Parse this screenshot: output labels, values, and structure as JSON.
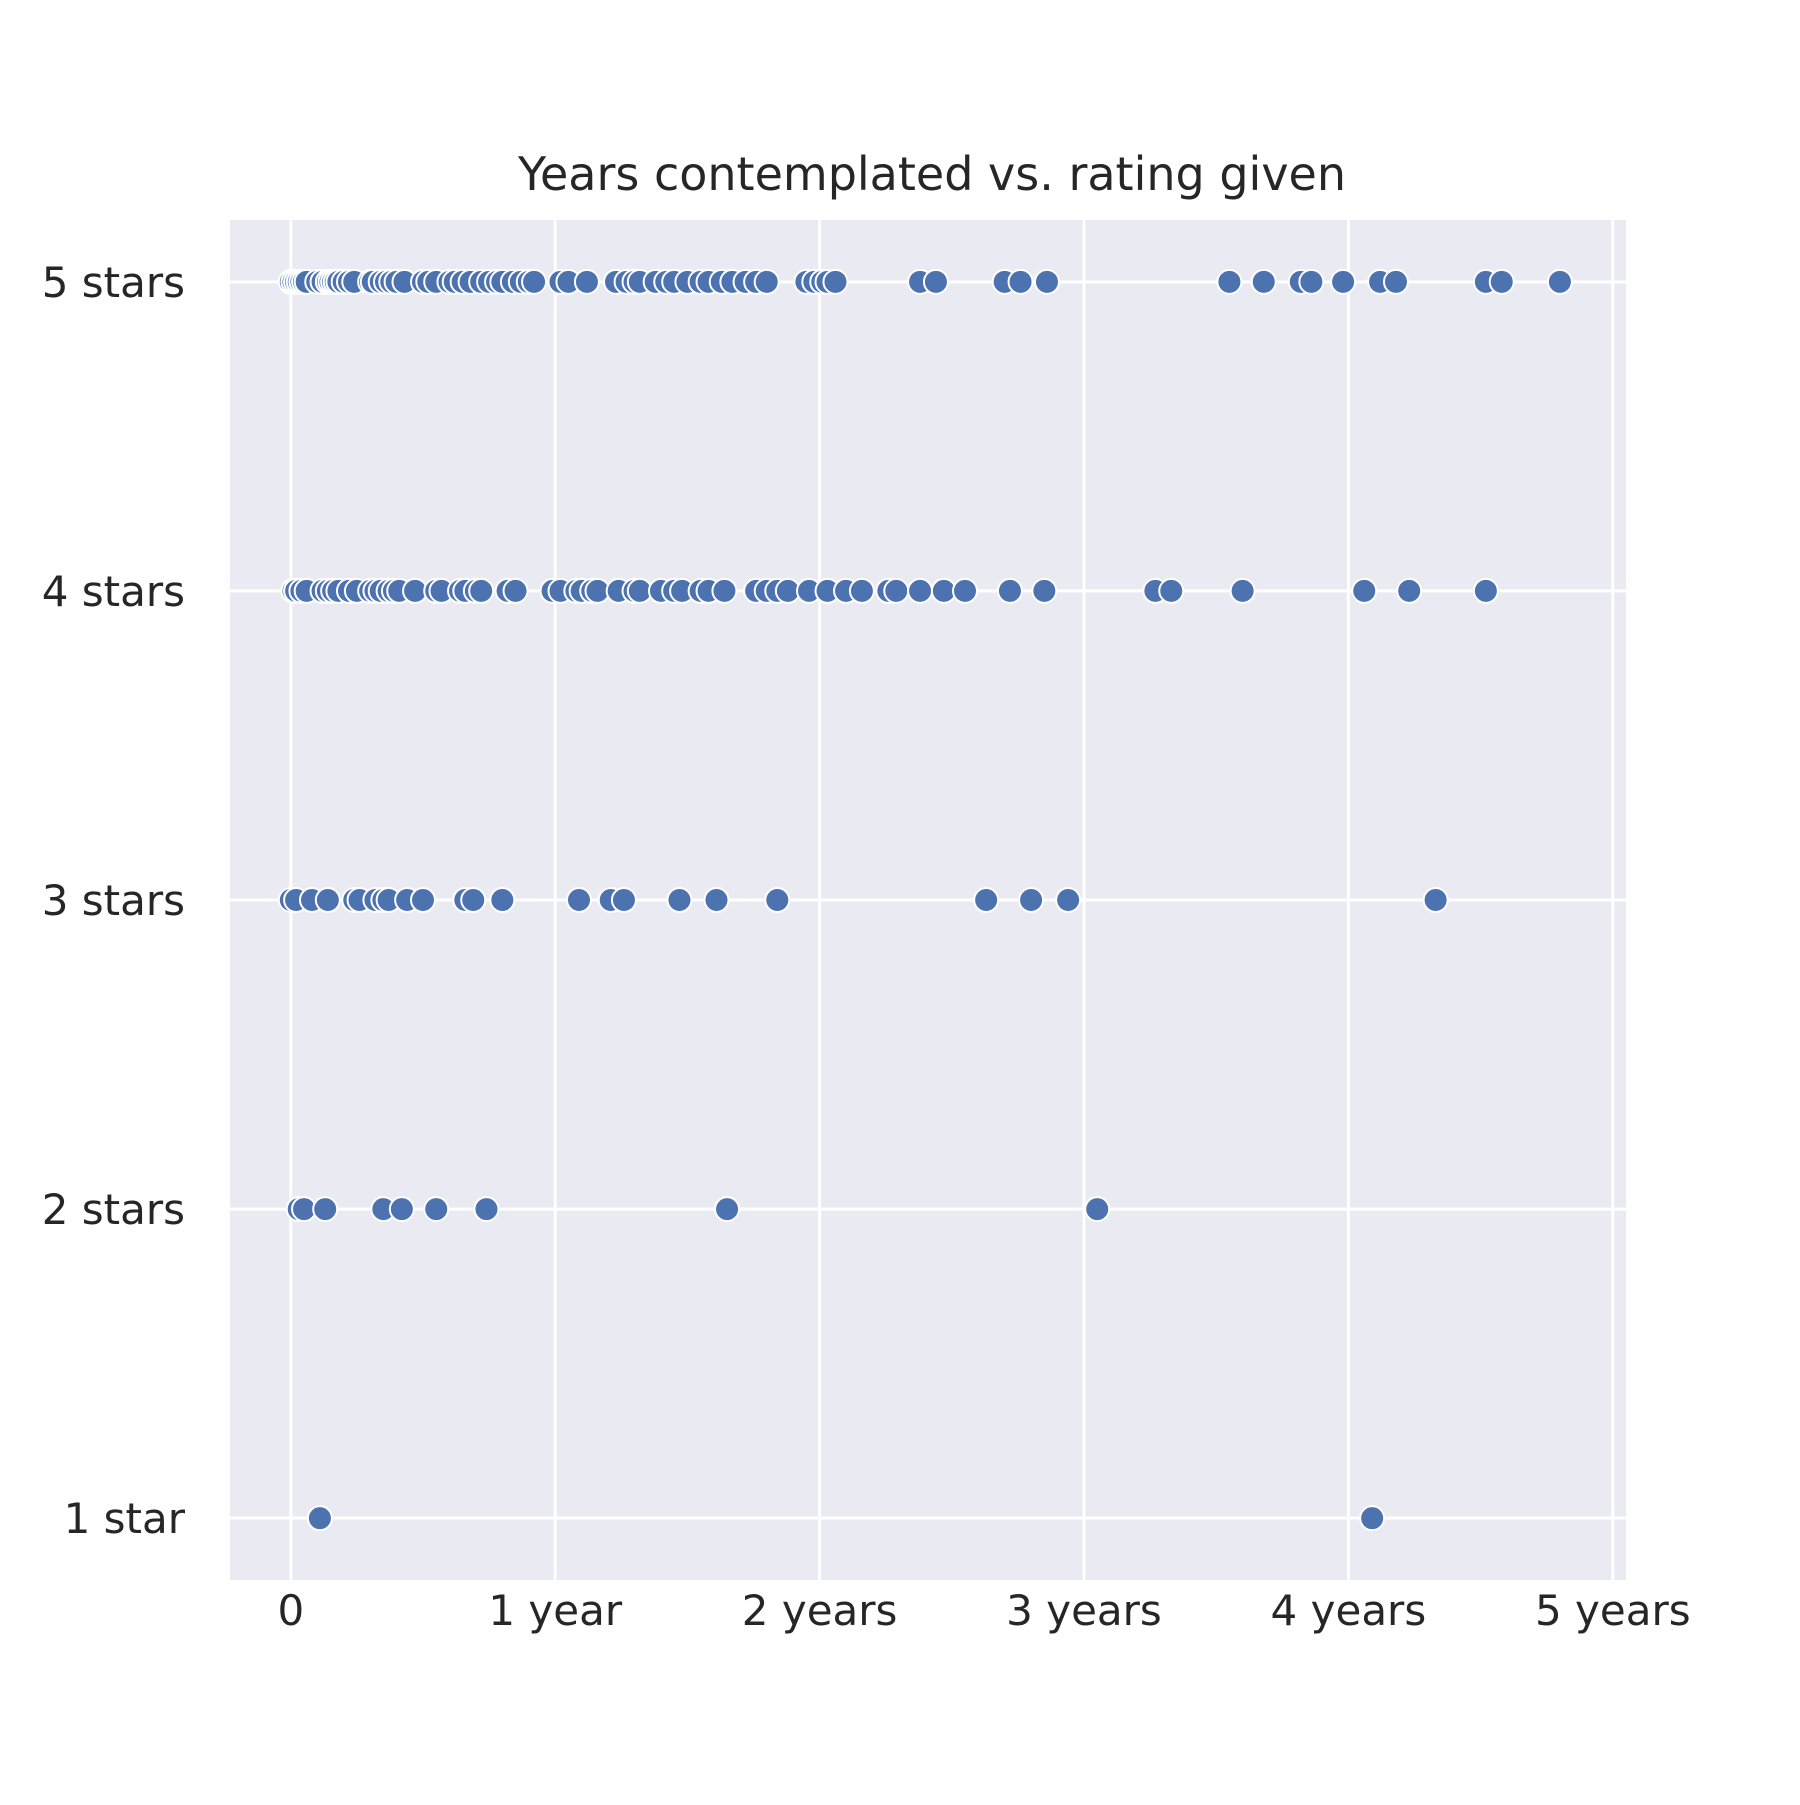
{
  "chart_data": {
    "type": "scatter",
    "title": "Years contemplated vs. rating given",
    "xlabel": "",
    "ylabel": "",
    "x_unit": "years",
    "xlim": [
      -0.23,
      5.05
    ],
    "ylim": [
      0.8,
      5.2
    ],
    "x_ticks": [
      {
        "value": 0,
        "label": "0"
      },
      {
        "value": 1,
        "label": "1 year"
      },
      {
        "value": 2,
        "label": "2 years"
      },
      {
        "value": 3,
        "label": "3 years"
      },
      {
        "value": 4,
        "label": "4 years"
      },
      {
        "value": 5,
        "label": "5 years"
      }
    ],
    "y_ticks": [
      {
        "value": 5,
        "label": "5 stars"
      },
      {
        "value": 4,
        "label": "4 stars"
      },
      {
        "value": 3,
        "label": "3 stars"
      },
      {
        "value": 2,
        "label": "2 stars"
      },
      {
        "value": 1,
        "label": "1 star"
      }
    ],
    "grid": true,
    "colors": {
      "point": "#4c72b0",
      "point_edge": "#ffffff",
      "background": "#eaeaf2",
      "grid": "#ffffff"
    },
    "series": [
      {
        "points": [
          {
            "rating": 5,
            "years": [
              0.0,
              0.01,
              0.02,
              0.03,
              0.04,
              0.05,
              0.06,
              0.1,
              0.12,
              0.14,
              0.15,
              0.16,
              0.17,
              0.18,
              0.2,
              0.22,
              0.24,
              0.3,
              0.31,
              0.34,
              0.36,
              0.38,
              0.4,
              0.43,
              0.5,
              0.52,
              0.55,
              0.6,
              0.62,
              0.65,
              0.68,
              0.72,
              0.75,
              0.78,
              0.8,
              0.84,
              0.87,
              0.9,
              0.92,
              1.02,
              1.05,
              1.12,
              1.23,
              1.27,
              1.3,
              1.32,
              1.38,
              1.42,
              1.45,
              1.5,
              1.55,
              1.58,
              1.63,
              1.67,
              1.72,
              1.76,
              1.8,
              1.95,
              1.98,
              2.01,
              2.03,
              2.06,
              2.38,
              2.44,
              2.7,
              2.76,
              2.86,
              3.55,
              3.68,
              3.82,
              3.86,
              3.98,
              4.12,
              4.18,
              4.52,
              4.58,
              4.8
            ]
          },
          {
            "rating": 4,
            "years": [
              0.01,
              0.02,
              0.04,
              0.06,
              0.12,
              0.14,
              0.16,
              0.18,
              0.22,
              0.25,
              0.3,
              0.32,
              0.34,
              0.37,
              0.39,
              0.41,
              0.47,
              0.55,
              0.57,
              0.64,
              0.66,
              0.7,
              0.72,
              0.82,
              0.85,
              0.99,
              1.02,
              1.08,
              1.1,
              1.14,
              1.16,
              1.24,
              1.3,
              1.32,
              1.4,
              1.45,
              1.48,
              1.55,
              1.58,
              1.64,
              1.76,
              1.8,
              1.84,
              1.88,
              1.96,
              2.03,
              2.1,
              2.16,
              2.26,
              2.29,
              2.38,
              2.47,
              2.55,
              2.72,
              2.85,
              3.27,
              3.33,
              3.6,
              4.06,
              4.23,
              4.52
            ]
          },
          {
            "rating": 3,
            "years": [
              0.0,
              0.02,
              0.08,
              0.14,
              0.24,
              0.26,
              0.32,
              0.35,
              0.37,
              0.44,
              0.5,
              0.66,
              0.69,
              0.8,
              1.09,
              1.21,
              1.26,
              1.47,
              1.61,
              1.84,
              2.63,
              2.8,
              2.94,
              4.33
            ]
          },
          {
            "rating": 2,
            "years": [
              0.03,
              0.05,
              0.13,
              0.35,
              0.42,
              0.55,
              0.74,
              1.65,
              3.05
            ]
          },
          {
            "rating": 1,
            "years": [
              0.11,
              4.09
            ]
          }
        ]
      }
    ]
  }
}
